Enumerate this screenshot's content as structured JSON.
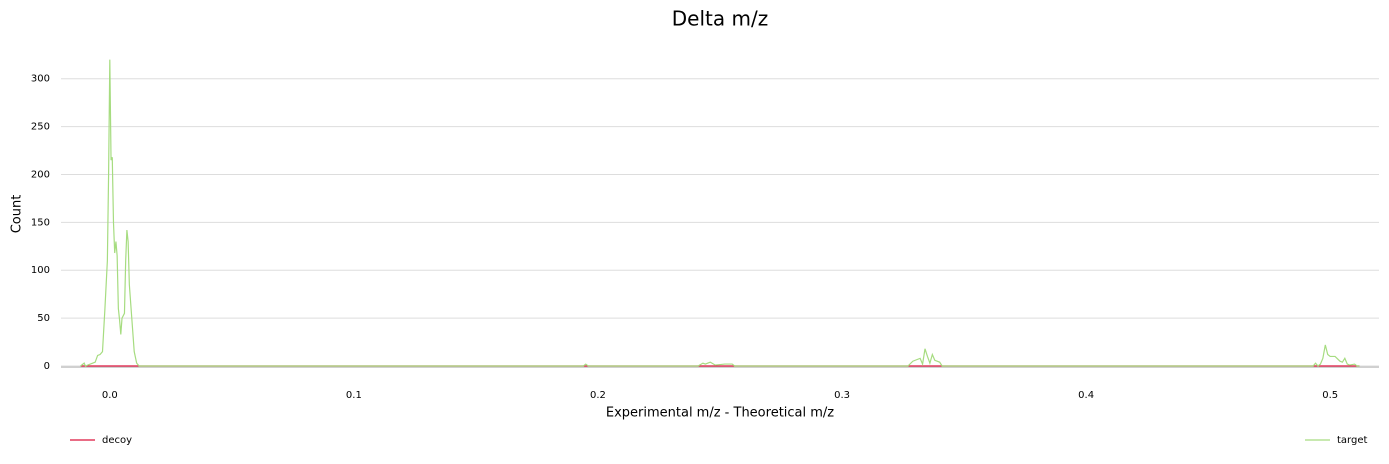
{
  "chart_data": {
    "type": "line",
    "title": "Delta m/z",
    "x_label": "Experimental m/z - Theoretical m/z",
    "y_label": "Count",
    "x": [
      -0.012,
      -0.0105,
      -0.01,
      -0.008,
      -0.006,
      -0.005,
      -0.004,
      -0.003,
      -0.002,
      -0.001,
      -0.0005,
      0,
      0.0005,
      0.001,
      0.0015,
      0.002,
      0.0025,
      0.003,
      0.0035,
      0.004,
      0.0045,
      0.005,
      0.006,
      0.0065,
      0.007,
      0.0075,
      0.008,
      0.009,
      0.01,
      0.011,
      0.012,
      0.194,
      0.195,
      0.196,
      0.241,
      0.243,
      0.244,
      0.246,
      0.248,
      0.252,
      0.255,
      0.256,
      0.327,
      0.329,
      0.33,
      0.332,
      0.333,
      0.334,
      0.335,
      0.336,
      0.337,
      0.338,
      0.34,
      0.341,
      0.493,
      0.494,
      0.495,
      0.496,
      0.497,
      0.498,
      0.499,
      0.5,
      0.502,
      0.504,
      0.505,
      0.506,
      0.507,
      0.508,
      0.51,
      0.511,
      0.512
    ],
    "series": [
      {
        "name": "decoy",
        "color": "#dc143c",
        "values": [
          0,
          0,
          0,
          0,
          0,
          0,
          0,
          0,
          0,
          0,
          0,
          0,
          0,
          0,
          0,
          0,
          0,
          0,
          0,
          0,
          0,
          0,
          0,
          0,
          0,
          0,
          0,
          0,
          0,
          0,
          0,
          0,
          0,
          0,
          0,
          0,
          0,
          0,
          0,
          0,
          0,
          0,
          0,
          0,
          0,
          0,
          0,
          0,
          0,
          0,
          0,
          0,
          0,
          0,
          0,
          0,
          0,
          0,
          0,
          0,
          0,
          0,
          0,
          0,
          0,
          0,
          0,
          0,
          0,
          0,
          0
        ]
      },
      {
        "name": "target",
        "color": "#a6dc80",
        "values": [
          0,
          3,
          0,
          2,
          4,
          11,
          12,
          15,
          60,
          110,
          200,
          320,
          215,
          218,
          150,
          118,
          130,
          115,
          60,
          48,
          33,
          50,
          55,
          110,
          142,
          130,
          85,
          50,
          15,
          3,
          0,
          0,
          2,
          0,
          0,
          3,
          2,
          4,
          1,
          2,
          2,
          0,
          0,
          5,
          6,
          8,
          2,
          18,
          10,
          3,
          12,
          6,
          4,
          0,
          0,
          3,
          0,
          2,
          8,
          22,
          12,
          10,
          10,
          5,
          4,
          8,
          2,
          1,
          2,
          0,
          0
        ]
      }
    ],
    "xlim": [
      -0.02,
      0.52
    ],
    "ylim": [
      0,
      330
    ],
    "xticks": [
      {
        "value": 0,
        "label": "0.0"
      },
      0.1,
      0.2,
      0.3,
      0.4,
      0.5
    ],
    "yticks": [
      0,
      50,
      100,
      150,
      200,
      250,
      300
    ],
    "grid": true
  }
}
